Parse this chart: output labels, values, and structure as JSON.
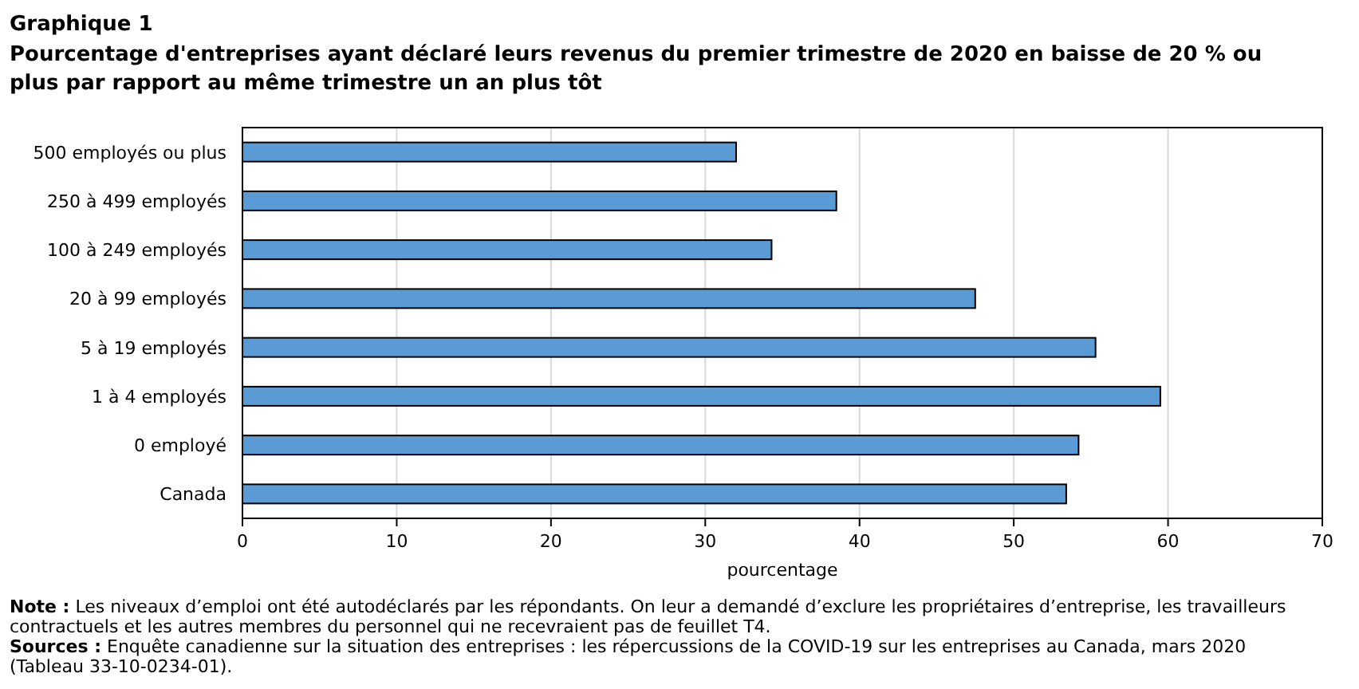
{
  "chart_data": {
    "type": "bar",
    "orientation": "horizontal",
    "title": "Graphique 1",
    "subtitle": "Pourcentage d'entreprises ayant déclaré leurs revenus du premier trimestre de 2020 en baisse de 20 % ou plus par rapport au même trimestre un an plus tôt",
    "categories": [
      "500 employés ou plus",
      "250 à 499 employés",
      "100 à 249 employés",
      "20 à 99 employés",
      "5 à 19 employés",
      "1 à 4 employés",
      "0 employé",
      "Canada"
    ],
    "values": [
      32.0,
      38.5,
      34.3,
      47.5,
      55.3,
      59.5,
      54.2,
      53.4
    ],
    "color": "#5b9bd5",
    "xlabel": "pourcentage",
    "xlim": [
      0,
      70
    ],
    "xticks": [
      0,
      10,
      20,
      30,
      40,
      50,
      60,
      70
    ],
    "grid": "x",
    "annotations": [
      "Note : Les niveaux d’emploi ont été autodéclarés par les répondants. On leur a demandé d’exclure les propriétaires d’entreprise, les travailleurs contractuels et les autres membres du personnel qui ne recevraient pas de feuillet T4.",
      "Sources : Enquête canadienne sur la situation des entreprises : les répercussions de la COVID-19 sur les entreprises au Canada, mars 2020 (Tableau 33-10-0234-01)."
    ]
  }
}
